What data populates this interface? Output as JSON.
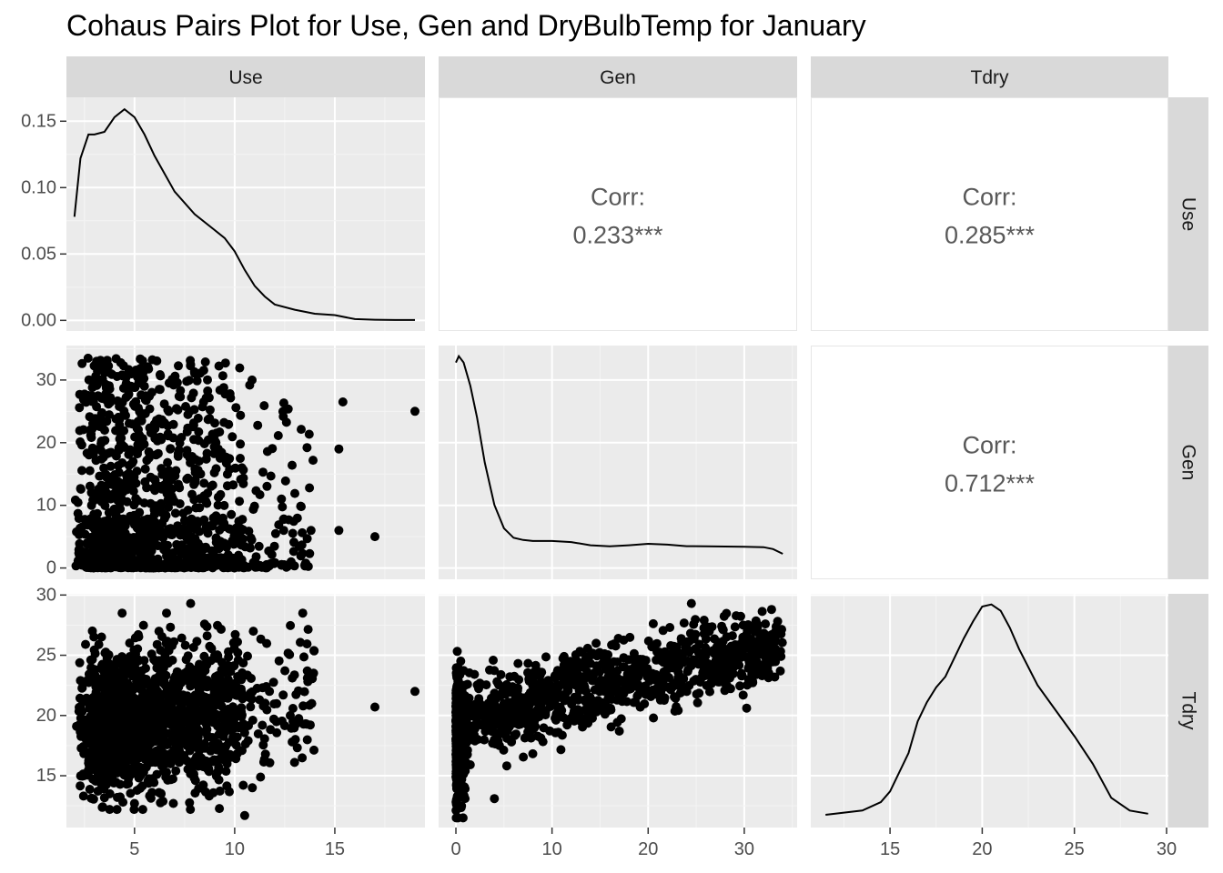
{
  "chart_data": {
    "type": "pairs",
    "title": "Cohaus Pairs Plot for Use, Gen and DryBulbTemp for January",
    "variables": [
      "Use",
      "Gen",
      "Tdry"
    ],
    "grid": true,
    "axes": {
      "Use": {
        "range": [
          1.6,
          19.5
        ],
        "ticks": [
          5,
          10,
          15
        ]
      },
      "Gen": {
        "range": [
          -1.8,
          35.5
        ],
        "ticks": [
          0,
          10,
          20,
          30
        ]
      },
      "Tdry": {
        "range": [
          10.7,
          30.1
        ],
        "ticks": [
          15,
          20,
          25,
          30
        ]
      }
    },
    "y_axis_labels": {
      "Use_density": {
        "range": [
          -0.008,
          0.168
        ],
        "ticks": [
          "0.00",
          "0.05",
          "0.10",
          "0.15"
        ],
        "values": [
          0,
          0.05,
          0.1,
          0.15
        ]
      },
      "Gen": {
        "ticks": [
          "0",
          "10",
          "20",
          "30"
        ],
        "values": [
          0,
          10,
          20,
          30
        ]
      },
      "Tdry": {
        "ticks": [
          "15",
          "20",
          "25",
          "30"
        ],
        "values": [
          15,
          20,
          25,
          30
        ]
      }
    },
    "x_axis_labels": {
      "Use": [
        "5",
        "10",
        "15"
      ],
      "Gen": [
        "0",
        "10",
        "20",
        "30"
      ],
      "Tdry": [
        "15",
        "20",
        "25",
        "30"
      ]
    },
    "correlations": [
      {
        "pair": [
          "Use",
          "Gen"
        ],
        "label": "Corr:",
        "value": "0.233***"
      },
      {
        "pair": [
          "Use",
          "Tdry"
        ],
        "label": "Corr:",
        "value": "0.285***"
      },
      {
        "pair": [
          "Gen",
          "Tdry"
        ],
        "label": "Corr:",
        "value": "0.712***"
      }
    ],
    "densities": {
      "Use": {
        "x": [
          2.0,
          2.3,
          2.7,
          3.0,
          3.5,
          4.0,
          4.5,
          5.0,
          5.5,
          6.0,
          7.0,
          8.0,
          9.0,
          9.5,
          10.0,
          10.5,
          11.0,
          11.5,
          12.0,
          13.0,
          14.0,
          15.0,
          16.0,
          17.0,
          18.0,
          19.0
        ],
        "y": [
          0.078,
          0.122,
          0.14,
          0.14,
          0.142,
          0.153,
          0.159,
          0.153,
          0.14,
          0.124,
          0.097,
          0.08,
          0.068,
          0.062,
          0.052,
          0.038,
          0.026,
          0.018,
          0.012,
          0.008,
          0.005,
          0.004,
          0.001,
          0.0005,
          0.0003,
          0.0003
        ]
      },
      "Gen": {
        "x": [
          0.0,
          0.3,
          0.8,
          1.5,
          2.2,
          3.0,
          4.0,
          5.0,
          6.0,
          7.0,
          8.0,
          10.0,
          12.0,
          14.0,
          16.0,
          18.0,
          20.0,
          22.0,
          24.0,
          26.0,
          28.0,
          30.0,
          32.0,
          33.0,
          34.0
        ],
        "y": [
          0.97,
          1.0,
          0.97,
          0.86,
          0.71,
          0.5,
          0.3,
          0.19,
          0.145,
          0.135,
          0.13,
          0.13,
          0.125,
          0.11,
          0.105,
          0.11,
          0.117,
          0.113,
          0.106,
          0.105,
          0.104,
          0.103,
          0.101,
          0.092,
          0.07
        ]
      },
      "Tdry": {
        "x": [
          11.5,
          12.5,
          13.5,
          14.5,
          15.0,
          16.0,
          16.5,
          17.0,
          17.5,
          18.0,
          19.0,
          19.5,
          20.0,
          20.5,
          21.0,
          21.5,
          22.0,
          23.0,
          24.0,
          25.0,
          26.0,
          27.0,
          28.0,
          29.0
        ],
        "y": [
          0.01,
          0.02,
          0.03,
          0.07,
          0.12,
          0.3,
          0.45,
          0.54,
          0.61,
          0.66,
          0.84,
          0.92,
          0.99,
          1.0,
          0.97,
          0.89,
          0.79,
          0.62,
          0.5,
          0.38,
          0.25,
          0.09,
          0.03,
          0.015
        ]
      }
    },
    "scatter_clouds": {
      "Use_vs_Gen": {
        "n": 1500,
        "x_range": [
          2,
          19
        ],
        "y_range": [
          0,
          34
        ],
        "outliers": [
          [
            19,
            25
          ],
          [
            17,
            5
          ],
          [
            15.4,
            26.5
          ],
          [
            15.2,
            19
          ],
          [
            15.2,
            6
          ]
        ]
      },
      "Use_vs_Tdry": {
        "n": 1500,
        "x_range": [
          2,
          19
        ],
        "y_range": [
          11.5,
          29.3
        ],
        "outliers": [
          [
            19,
            22
          ],
          [
            17,
            20.7
          ],
          [
            10.5,
            11.7
          ],
          [
            7.8,
            29.3
          ],
          [
            5,
            12.7
          ]
        ]
      },
      "Gen_vs_Tdry": {
        "n": 1500,
        "x_range": [
          0,
          34
        ],
        "y_range": [
          11.5,
          29.3
        ],
        "outliers": [
          [
            24.5,
            29.3
          ],
          [
            17,
            18.7
          ],
          [
            4,
            13.1
          ]
        ]
      }
    }
  },
  "colors": {
    "panel_bg": "#ebebeb",
    "grid_major": "#ffffff",
    "grid_minor": "#f4f4f4",
    "strip_bg": "#d9d9d9",
    "point": "#000000",
    "line": "#000000",
    "corr_text": "#595959",
    "tick": "#333333",
    "tick_text": "#4d4d4d"
  }
}
